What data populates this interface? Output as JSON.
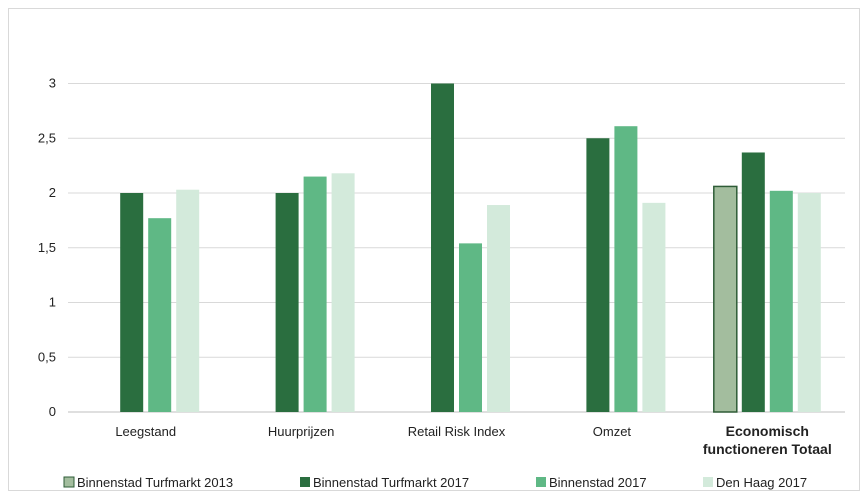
{
  "chart_data": {
    "type": "bar",
    "categories": [
      "Leegstand",
      "Huurprijzen",
      "Retail Risk Index",
      "Omzet",
      "Economisch functioneren Totaal"
    ],
    "category_lines": [
      [
        "Leegstand"
      ],
      [
        "Huurprijzen"
      ],
      [
        "Retail Risk Index"
      ],
      [
        "Omzet"
      ],
      [
        "Economisch",
        "functioneren Totaal"
      ]
    ],
    "series": [
      {
        "name": "Binnenstad Turfmarkt 2013",
        "color": "#a3bd9e",
        "stroke": "#2e5c37",
        "values": [
          null,
          null,
          null,
          null,
          2.06
        ]
      },
      {
        "name": "Binnenstad Turfmarkt 2017",
        "color": "#2a6e3f",
        "values": [
          2.0,
          2.0,
          3.0,
          2.5,
          2.37
        ]
      },
      {
        "name": "Binnenstad 2017",
        "color": "#5fb885",
        "values": [
          1.77,
          2.15,
          1.54,
          2.61,
          2.02
        ]
      },
      {
        "name": "Den Haag 2017",
        "color": "#d3eadb",
        "values": [
          2.03,
          2.18,
          1.89,
          1.91,
          2.0
        ]
      }
    ],
    "yticks": [
      "0",
      "0,5",
      "1",
      "1,5",
      "2",
      "2,5",
      "3"
    ],
    "ylim": [
      0,
      3.5
    ],
    "grid": true,
    "legend_position": "bottom",
    "highlight_category": "Economisch functioneren Totaal",
    "title": "",
    "xlabel": "",
    "ylabel": ""
  }
}
